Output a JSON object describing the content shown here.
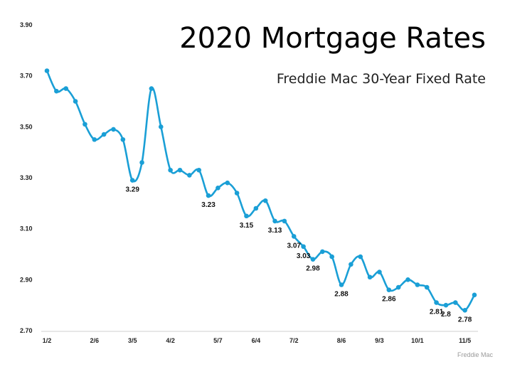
{
  "chart_data": {
    "type": "line",
    "title": "2020 Mortgage Rates",
    "subtitle": "Freddie Mac 30-Year Fixed Rate",
    "source": "Freddie Mac",
    "xlabel": "",
    "ylabel": "",
    "ylim": [
      2.7,
      3.9
    ],
    "yticks": [
      "2.70",
      "2.90",
      "3.10",
      "3.30",
      "3.50",
      "3.70",
      "3.90"
    ],
    "x_tick_labels": [
      {
        "label": "1/2",
        "index": 0
      },
      {
        "label": "2/6",
        "index": 5
      },
      {
        "label": "3/5",
        "index": 9
      },
      {
        "label": "4/2",
        "index": 13
      },
      {
        "label": "5/7",
        "index": 18
      },
      {
        "label": "6/4",
        "index": 22
      },
      {
        "label": "7/2",
        "index": 26
      },
      {
        "label": "8/6",
        "index": 31
      },
      {
        "label": "9/3",
        "index": 35
      },
      {
        "label": "10/1",
        "index": 39
      },
      {
        "label": "11/5",
        "index": 44
      }
    ],
    "grid": false,
    "color": "#1a9fd6",
    "series": [
      {
        "values": [
          3.72,
          3.64,
          3.65,
          3.6,
          3.51,
          3.45,
          3.47,
          3.49,
          3.45,
          3.29,
          3.36,
          3.65,
          3.5,
          3.33,
          3.33,
          3.31,
          3.33,
          3.23,
          3.26,
          3.28,
          3.24,
          3.15,
          3.18,
          3.21,
          3.13,
          3.13,
          3.07,
          3.03,
          2.98,
          3.01,
          2.99,
          2.88,
          2.96,
          2.99,
          2.91,
          2.93,
          2.86,
          2.87,
          2.9,
          2.88,
          2.87,
          2.81,
          2.8,
          2.81,
          2.78,
          2.84
        ]
      }
    ],
    "data_labels": [
      {
        "index": 9,
        "text": "3.29"
      },
      {
        "index": 17,
        "text": "3.23"
      },
      {
        "index": 21,
        "text": "3.15"
      },
      {
        "index": 24,
        "text": "3.13"
      },
      {
        "index": 26,
        "text": "3.07"
      },
      {
        "index": 27,
        "text": "3.03"
      },
      {
        "index": 28,
        "text": "2.98"
      },
      {
        "index": 31,
        "text": "2.88"
      },
      {
        "index": 36,
        "text": "2.86"
      },
      {
        "index": 41,
        "text": "2.81"
      },
      {
        "index": 42,
        "text": "2.8"
      },
      {
        "index": 44,
        "text": "2.78"
      }
    ]
  }
}
